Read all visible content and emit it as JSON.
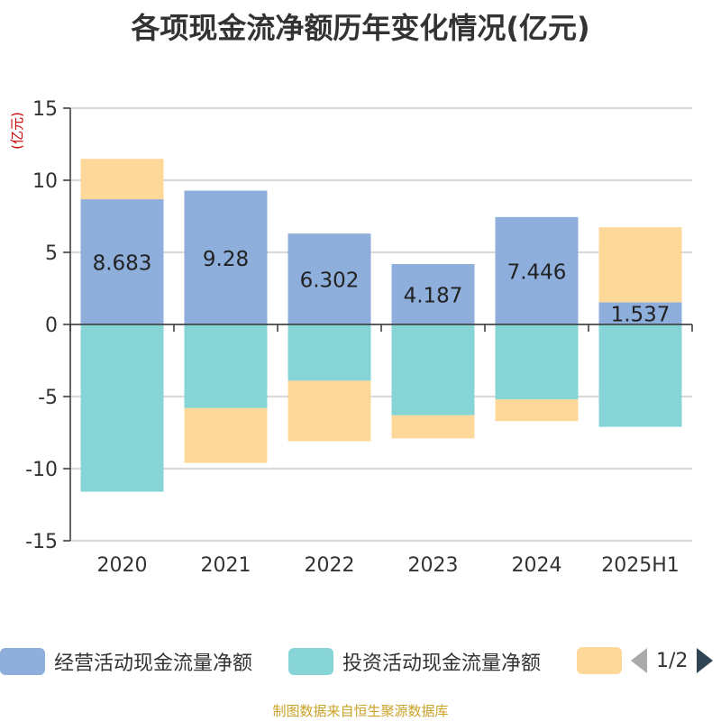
{
  "title": "各项现金流净额历年变化情况(亿元)",
  "footer": "制图数据来自恒生聚源数据库",
  "legend": {
    "items": [
      {
        "label": "经营活动现金流量净额",
        "color": "#8eaedb"
      },
      {
        "label": "投资活动现金流量净额",
        "color": "#86d4d6"
      },
      {
        "label": "",
        "color": "#fdd898"
      }
    ],
    "page": "1/2"
  },
  "chart_data": {
    "type": "bar",
    "stacked": true,
    "unit_label": "(亿元)",
    "categories": [
      "2020",
      "2021",
      "2022",
      "2023",
      "2024",
      "2025H1"
    ],
    "ylim": [
      -15,
      15
    ],
    "yticks": [
      15,
      10,
      5,
      0,
      -5,
      -10,
      -15
    ],
    "grid": true,
    "legend_position": "bottom",
    "series": [
      {
        "name": "经营活动现金流量净额",
        "color": "#8eaedb",
        "values": [
          8.683,
          9.28,
          6.302,
          4.187,
          7.446,
          1.537
        ],
        "show_labels": true
      },
      {
        "name": "投资活动现金流量净额",
        "color": "#86d4d6",
        "values": [
          -11.6,
          -5.8,
          -3.9,
          -6.3,
          -5.2,
          -7.1
        ],
        "show_labels": false
      },
      {
        "color": "#fdd898",
        "values": [
          2.8,
          -3.8,
          -4.2,
          -1.6,
          -1.5,
          5.2
        ],
        "show_labels": false
      }
    ]
  }
}
